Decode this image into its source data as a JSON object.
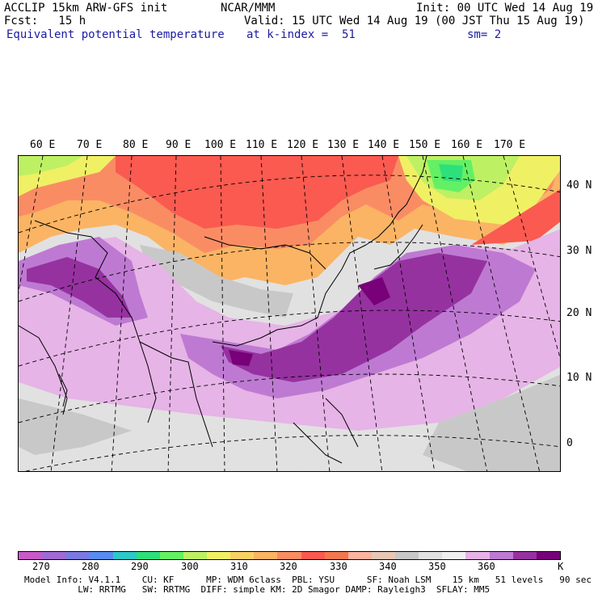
{
  "header": {
    "left1": "ACCLIP 15km ARW-GFS init",
    "left2": "Fcst:   15 h",
    "center": "NCAR/MMM",
    "init": "Init: 00 UTC Wed 14 Aug 19",
    "valid": "Valid: 15 UTC Wed 14 Aug 19 (00 JST Thu 15 Aug 19)",
    "field": "Equivalent potential temperature",
    "level": "at k-index =  51",
    "smooth": "sm= 2"
  },
  "map": {
    "lon_labels": [
      "60 E",
      "70 E",
      "80 E",
      "90 E",
      "100 E",
      "110 E",
      "120 E",
      "130 E",
      "140 E",
      "150 E",
      "160 E",
      "170 E"
    ],
    "lat_labels": [
      "40 N",
      "30 N",
      "20 N",
      "10 N",
      "0"
    ],
    "colors": {
      "ocean_background": "#e8e8e8",
      "coastline": "#000000",
      "gridline": "#000000"
    }
  },
  "colorbar": {
    "unit": "K",
    "labels": [
      "270",
      "280",
      "290",
      "300",
      "310",
      "320",
      "330",
      "340",
      "350",
      "360"
    ],
    "colors": [
      "#c85ac8",
      "#a06ad2",
      "#7a7ae0",
      "#5a8cf0",
      "#2ec8c8",
      "#2ee07a",
      "#64f064",
      "#bef064",
      "#f0f064",
      "#fad264",
      "#fab464",
      "#fa8c64",
      "#fa5a50",
      "#f07850",
      "#fab4a0",
      "#e6c8b4",
      "#c8c8c8",
      "#e1e1e1",
      "#f0f0f0",
      "#e6b4e6",
      "#be7ad2",
      "#9632a0",
      "#780078"
    ]
  },
  "footer": {
    "line1": "Model Info: V4.1.1    CU: KF      MP: WDM 6class  PBL: YSU      SF: Noah LSM    15 km   51 levels   90 sec",
    "line2": "          LW: RRTMG   SW: RRTMG  DIFF: simple KM: 2D Smagor DAMP: Rayleigh3  SFLAY: MM5"
  }
}
